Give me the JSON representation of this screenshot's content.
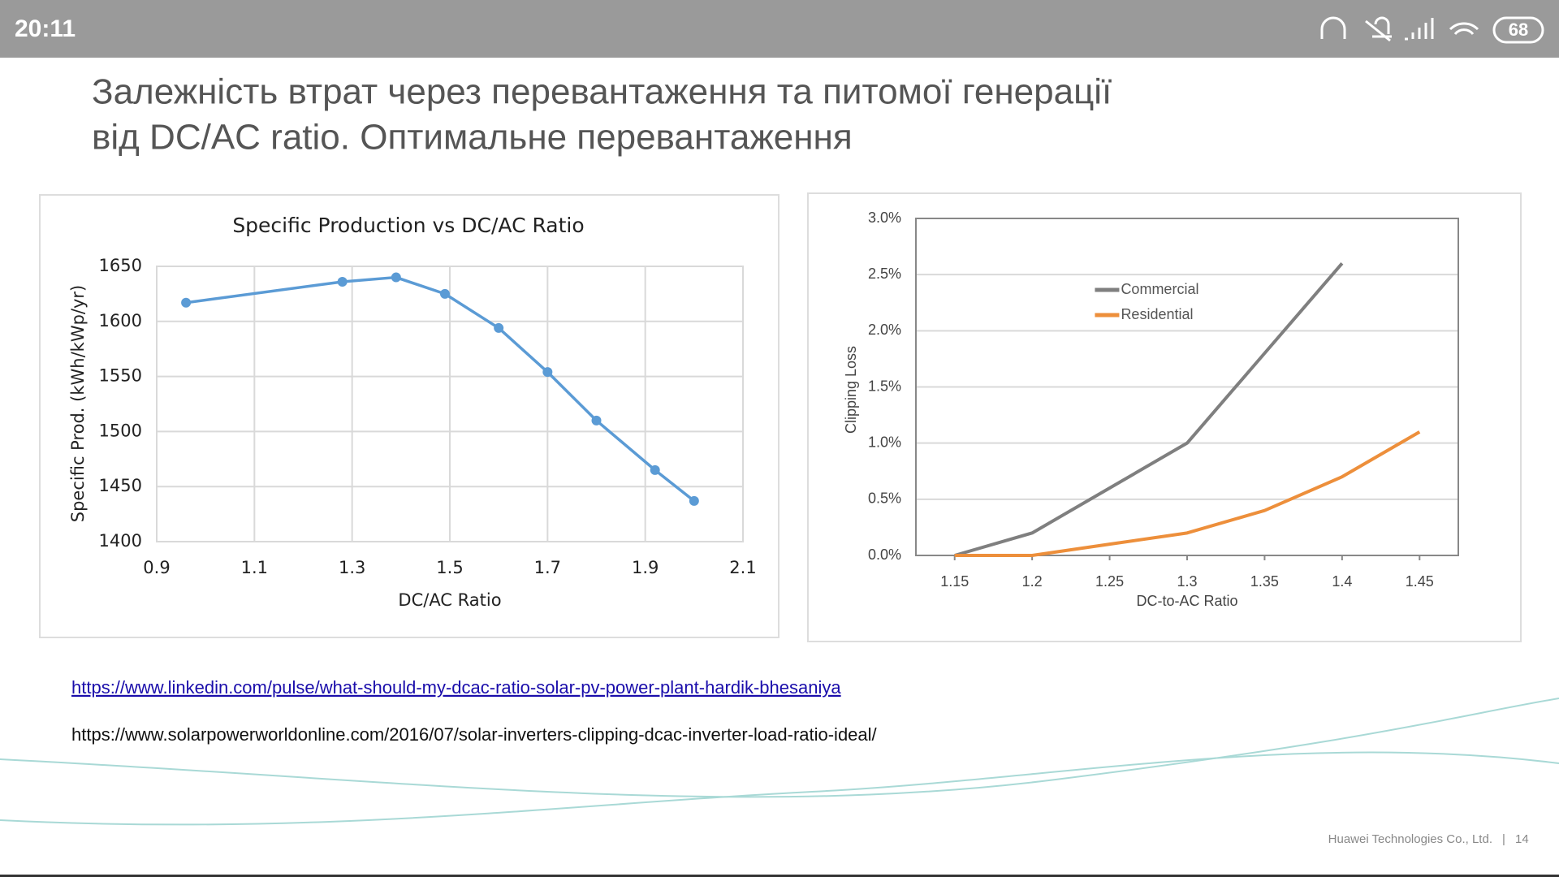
{
  "status_bar": {
    "time": "20:11",
    "battery": "68"
  },
  "slide": {
    "title_line1": "Залежність втрат через перевантаження та питомої генерації",
    "title_line2": "від DC/AC ratio. Оптимальне перевантаження",
    "link1": "https://www.linkedin.com/pulse/what-should-my-dcac-ratio-solar-pv-power-plant-hardik-bhesaniya",
    "link2": "https://www.solarpowerworldonline.com/2016/07/solar-inverters-clipping-dcac-inverter-load-ratio-ideal/",
    "footer": "Huawei Technologies Co., Ltd.",
    "page": "14"
  },
  "chart_data": [
    {
      "type": "line",
      "title": "Specific Production vs DC/AC Ratio",
      "x_label": "DC/AC Ratio",
      "y_label": "Specific Prod. (kWh/kWp/yr)",
      "x": [
        0.96,
        1.28,
        1.39,
        1.49,
        1.6,
        1.7,
        1.8,
        1.92,
        2.0
      ],
      "values": [
        1617,
        1636,
        1640,
        1625,
        1594,
        1554,
        1510,
        1465,
        1437
      ],
      "color": "#5b9bd5",
      "markers": true,
      "xlim": [
        0.9,
        2.1
      ],
      "xticks": [
        0.9,
        1.1,
        1.3,
        1.5,
        1.7,
        1.9,
        2.1
      ],
      "ylim": [
        1400,
        1650
      ],
      "yticks": [
        1400,
        1450,
        1500,
        1550,
        1600,
        1650
      ],
      "grid": "both"
    },
    {
      "type": "line",
      "x_label": "DC-to-AC Ratio",
      "y_label": "Clipping Loss",
      "x": [
        1.15,
        1.2,
        1.25,
        1.3,
        1.35,
        1.4,
        1.45
      ],
      "series": [
        {
          "name": "Commercial",
          "color": "#7f7f7f",
          "values": [
            0,
            0.2,
            0.6,
            1.0,
            1.8,
            2.6,
            null
          ]
        },
        {
          "name": "Residential",
          "color": "#ed8f3b",
          "values": [
            0,
            0,
            0.1,
            0.2,
            0.4,
            0.7,
            1.1
          ]
        }
      ],
      "xlim": [
        1.125,
        1.475
      ],
      "xticks": [
        1.15,
        1.2,
        1.25,
        1.3,
        1.35,
        1.4,
        1.45
      ],
      "ylim": [
        0,
        3
      ],
      "yticks": [
        {
          "value": 0,
          "label": "0.0%"
        },
        {
          "value": 0.5,
          "label": "0.5%"
        },
        {
          "value": 1,
          "label": "1.0%"
        },
        {
          "value": 1.5,
          "label": "1.5%"
        },
        {
          "value": 2,
          "label": "2.0%"
        },
        {
          "value": 2.5,
          "label": "2.5%"
        },
        {
          "value": 3,
          "label": "3.0%"
        }
      ],
      "grid": "y",
      "legend": "top"
    }
  ]
}
